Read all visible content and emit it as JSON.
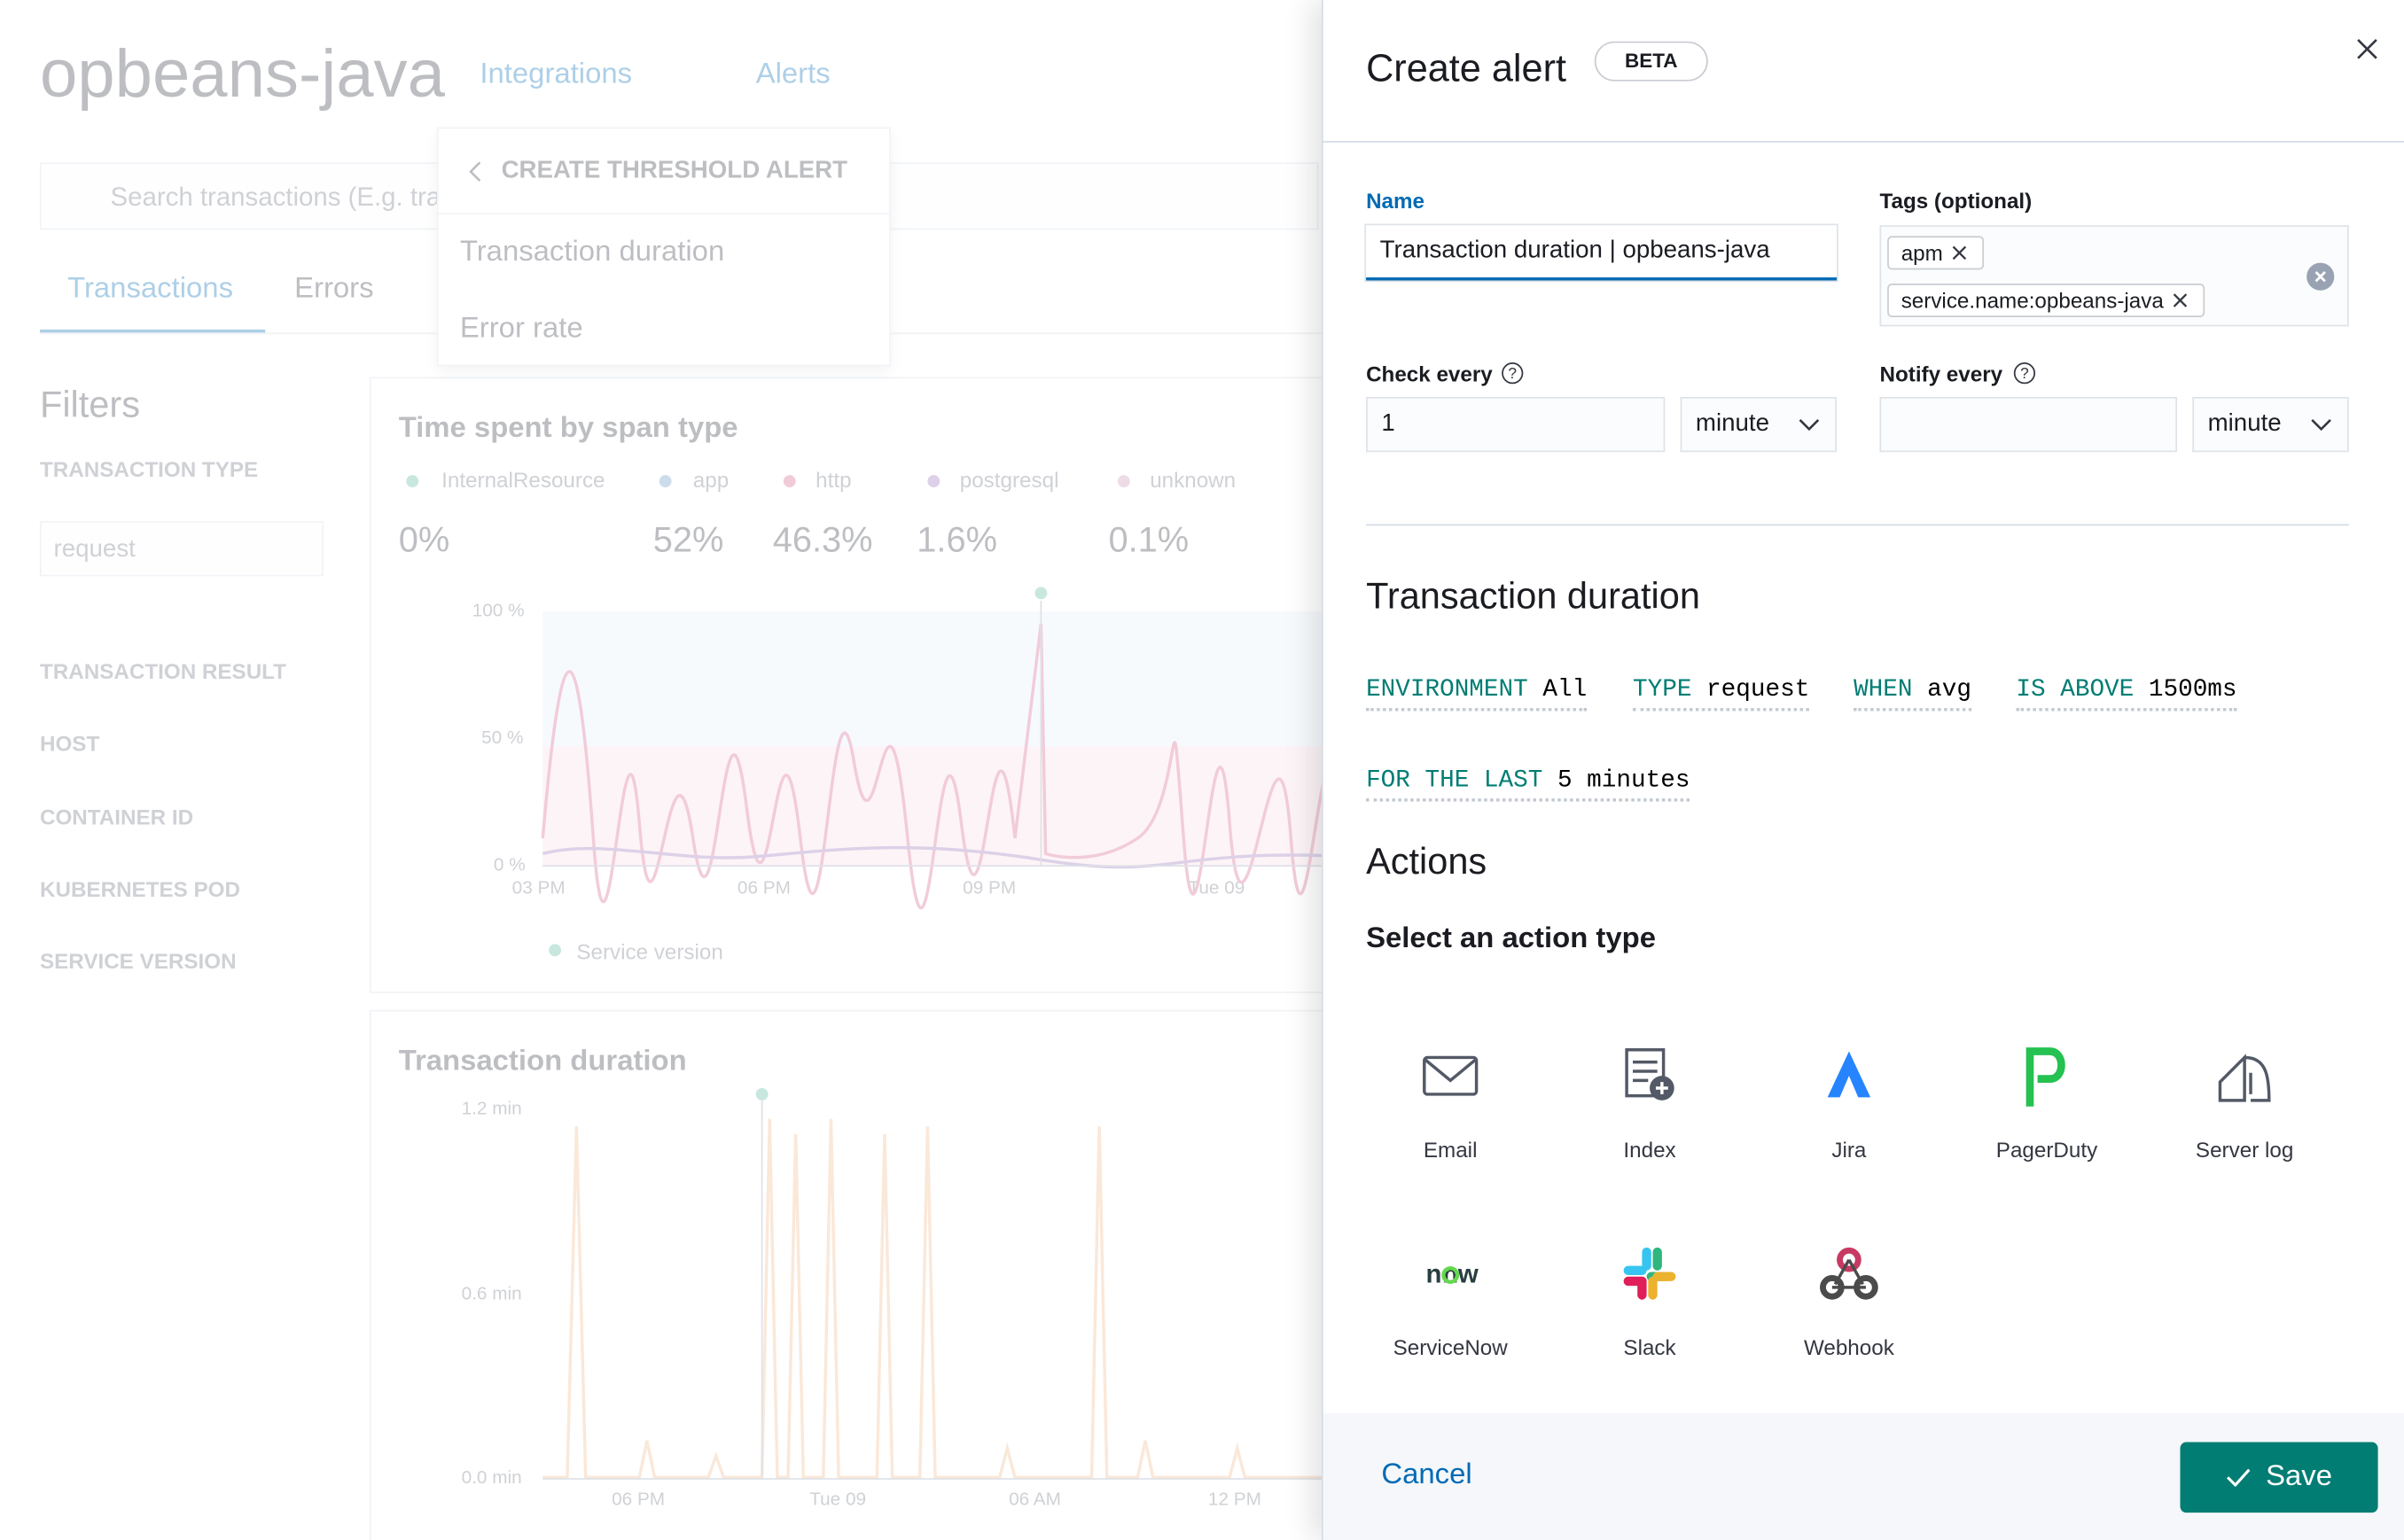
{
  "background": {
    "app_title": "opbeans-java",
    "nav": [
      "Integrations",
      "Alerts"
    ],
    "search_placeholder": "Search transactions (E.g. tra",
    "dropdown": {
      "title": "CREATE THRESHOLD ALERT",
      "items": [
        "Transaction duration",
        "Error rate"
      ]
    },
    "tabs": [
      "Transactions",
      "Errors"
    ],
    "filters": {
      "title": "Filters",
      "transaction_type": "TRANSACTION TYPE",
      "transaction_type_value": "request",
      "items": [
        "TRANSACTION RESULT",
        "HOST",
        "CONTAINER ID",
        "KUBERNETES POD",
        "SERVICE VERSION"
      ]
    },
    "span_chart": {
      "title": "Time spent by span type",
      "legend": [
        {
          "name": "InternalResource",
          "value": "0%"
        },
        {
          "name": "app",
          "value": "52%"
        },
        {
          "name": "http",
          "value": "46.3%"
        },
        {
          "name": "postgresql",
          "value": "1.6%"
        },
        {
          "name": "unknown",
          "value": "0.1%"
        }
      ],
      "yticks": [
        "100 %",
        "50 %",
        "0 %"
      ],
      "xticks": [
        "03 PM",
        "06 PM",
        "09 PM",
        "Tue 09"
      ],
      "marker_legend": "Service version"
    },
    "duration_chart": {
      "title": "Transaction duration",
      "yticks": [
        "1.2 min",
        "0.6 min",
        "0.0 min"
      ],
      "xticks": [
        "06 PM",
        "Tue 09",
        "06 AM",
        "12 PM"
      ]
    }
  },
  "flyout": {
    "title": "Create alert",
    "badge": "BETA",
    "name_label": "Name",
    "name_value": "Transaction duration | opbeans-java",
    "tags_label": "Tags (optional)",
    "tags": [
      "apm",
      "service.name:opbeans-java"
    ],
    "check_every_label": "Check every",
    "check_every_value": "1",
    "check_every_unit": "minute",
    "notify_every_label": "Notify every",
    "notify_every_unit": "minute",
    "section_title": "Transaction duration",
    "expression": [
      {
        "keyword": "ENVIRONMENT",
        "value": "All"
      },
      {
        "keyword": "TYPE",
        "value": "request"
      },
      {
        "keyword": "WHEN",
        "value": "avg"
      },
      {
        "keyword": "IS ABOVE",
        "value": "1500ms"
      },
      {
        "keyword": "FOR THE LAST",
        "value": "5 minutes"
      }
    ],
    "actions_title": "Actions",
    "action_type_title": "Select an action type",
    "action_types": [
      "Email",
      "Index",
      "Jira",
      "PagerDuty",
      "Server log",
      "ServiceNow",
      "Slack",
      "Webhook"
    ],
    "cancel": "Cancel",
    "save": "Save"
  }
}
